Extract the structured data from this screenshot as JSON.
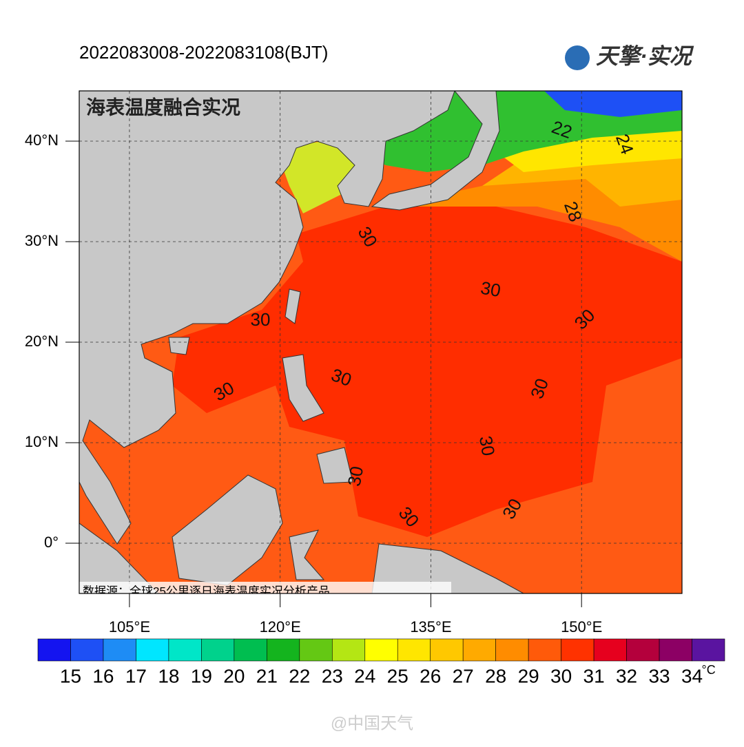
{
  "header": {
    "time": "2022083008-2022083108(BJT)",
    "logo": "天擎·实况"
  },
  "map": {
    "title": "海表温度融合实况",
    "lon_lim": [
      100,
      160
    ],
    "lat_lim": [
      -5,
      45
    ],
    "lon_ticks": [
      {
        "value": 105,
        "label": "105°E"
      },
      {
        "value": 120,
        "label": "120°E"
      },
      {
        "value": 135,
        "label": "135°E"
      },
      {
        "value": 150,
        "label": "150°E"
      }
    ],
    "lat_ticks": [
      {
        "value": 40,
        "label": "40°N"
      },
      {
        "value": 30,
        "label": "30°N"
      },
      {
        "value": 20,
        "label": "20°N"
      },
      {
        "value": 10,
        "label": "10°N"
      },
      {
        "value": 0,
        "label": "0°"
      }
    ],
    "contour_labels": [
      "22",
      "24",
      "28",
      "30",
      "30",
      "30",
      "30",
      "30",
      "30",
      "30",
      "30",
      "30",
      "30",
      "30"
    ],
    "source": "数据源：全球25公里逐日海表温度实况分析产品"
  },
  "colorbar": {
    "ticks": [
      15,
      16,
      17,
      18,
      19,
      20,
      21,
      22,
      23,
      24,
      25,
      26,
      27,
      28,
      29,
      30,
      31,
      32,
      33,
      34
    ],
    "unit": "°C",
    "colors": [
      "#1414f0",
      "#1e50f5",
      "#1e8cf5",
      "#00e6ff",
      "#00e6c8",
      "#00d28c",
      "#00be50",
      "#14b41e",
      "#64c814",
      "#b4e614",
      "#ffff00",
      "#ffe600",
      "#ffc800",
      "#ffaa00",
      "#ff8c00",
      "#ff5a0a",
      "#ff3200",
      "#e6001e",
      "#b4003c",
      "#8c0064",
      "#5a14a0"
    ]
  },
  "watermark": "@中国天气"
}
